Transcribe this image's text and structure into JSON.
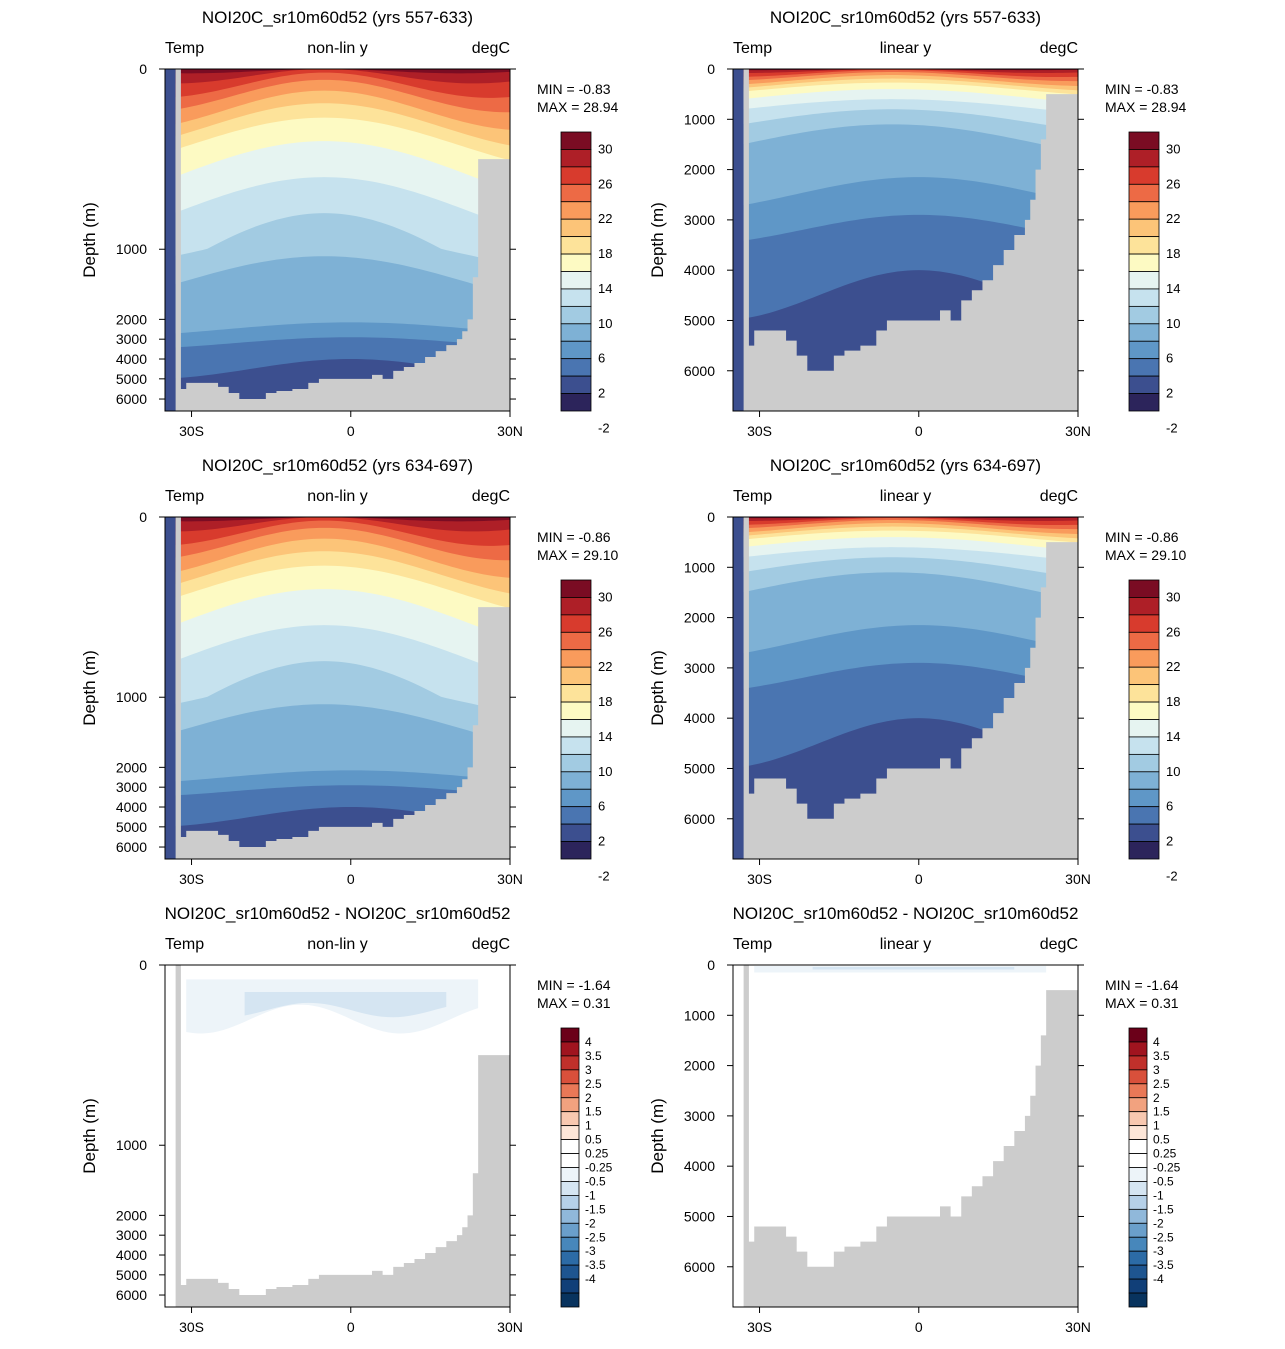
{
  "panels_grid": "3 rows x 2 columns",
  "land_color": "#cccccc",
  "absolute_palette": [
    "#2c245b",
    "#3c4f8f",
    "#4a75b1",
    "#5f97c7",
    "#7eb1d5",
    "#a2cbe2",
    "#c6e2ee",
    "#e6f4f1",
    "#fdfac3",
    "#fde39a",
    "#fcc478",
    "#f99b5c",
    "#ed6a45",
    "#d83b2d",
    "#ae1f27",
    "#7a0c23"
  ],
  "absolute_levels": [
    "-2",
    "2",
    "6",
    "10",
    "14",
    "18",
    "22",
    "26",
    "30"
  ],
  "difference_palette": [
    "#08335e",
    "#113f78",
    "#1e5590",
    "#2c6ba6",
    "#4787bb",
    "#6a9fcb",
    "#90b8da",
    "#b5d0e8",
    "#d5e5f2",
    "#edf4f9",
    "#ffffff",
    "#ffffff",
    "#fde6d8",
    "#f8c8b0",
    "#f2a27f",
    "#e97857",
    "#d9503b",
    "#c0302b",
    "#a0141f",
    "#6b0019"
  ],
  "difference_levels": [
    "4",
    "3.5",
    "3",
    "2.5",
    "2",
    "1.5",
    "1",
    "0.5",
    "0.25",
    "-0.25",
    "-0.5",
    "-1",
    "-1.5",
    "-2",
    "-2.5",
    "-3",
    "-3.5",
    "-4"
  ],
  "chart_data": [
    {
      "type": "heatmap",
      "title": "NOI20C_sr10m60d52 (yrs 557-633)",
      "header": {
        "left": "Temp",
        "center": "non-lin y",
        "right": "degC"
      },
      "stats": {
        "min": "MIN =  -0.83",
        "max": "MAX =  28.94"
      },
      "xlabel": "",
      "ylabel": "Depth (m)",
      "xticks": [
        "30S",
        "0",
        "30N"
      ],
      "yticks": [
        "0",
        "1000",
        "2000",
        "3000",
        "4000",
        "5000",
        "6000"
      ],
      "y_scale": "non-linear depth",
      "colorbar": "absolute",
      "z_range": [
        -0.83,
        28.94
      ]
    },
    {
      "type": "heatmap",
      "title": "NOI20C_sr10m60d52 (yrs 557-633)",
      "header": {
        "left": "Temp",
        "center": "linear y",
        "right": "degC"
      },
      "stats": {
        "min": "MIN =  -0.83",
        "max": "MAX =  28.94"
      },
      "xlabel": "",
      "ylabel": "Depth (m)",
      "xticks": [
        "30S",
        "0",
        "30N"
      ],
      "yticks": [
        "0",
        "1000",
        "2000",
        "3000",
        "4000",
        "5000",
        "6000"
      ],
      "y_scale": "linear depth",
      "colorbar": "absolute",
      "z_range": [
        -0.83,
        28.94
      ]
    },
    {
      "type": "heatmap",
      "title": "NOI20C_sr10m60d52 (yrs 634-697)",
      "header": {
        "left": "Temp",
        "center": "non-lin y",
        "right": "degC"
      },
      "stats": {
        "min": "MIN =  -0.86",
        "max": "MAX =  29.10"
      },
      "xlabel": "",
      "ylabel": "Depth (m)",
      "xticks": [
        "30S",
        "0",
        "30N"
      ],
      "yticks": [
        "0",
        "1000",
        "2000",
        "3000",
        "4000",
        "5000",
        "6000"
      ],
      "y_scale": "non-linear depth",
      "colorbar": "absolute",
      "z_range": [
        -0.86,
        29.1
      ]
    },
    {
      "type": "heatmap",
      "title": "NOI20C_sr10m60d52 (yrs 634-697)",
      "header": {
        "left": "Temp",
        "center": "linear y",
        "right": "degC"
      },
      "stats": {
        "min": "MIN =  -0.86",
        "max": "MAX =  29.10"
      },
      "xlabel": "",
      "ylabel": "Depth (m)",
      "xticks": [
        "30S",
        "0",
        "30N"
      ],
      "yticks": [
        "0",
        "1000",
        "2000",
        "3000",
        "4000",
        "5000",
        "6000"
      ],
      "y_scale": "linear depth",
      "colorbar": "absolute",
      "z_range": [
        -0.86,
        29.1
      ]
    },
    {
      "type": "heatmap",
      "title": "NOI20C_sr10m60d52 - NOI20C_sr10m60d52",
      "header": {
        "left": "Temp",
        "center": "non-lin y",
        "right": "degC"
      },
      "stats": {
        "min": "MIN =  -1.64",
        "max": "MAX =   0.31"
      },
      "xlabel": "",
      "ylabel": "Depth (m)",
      "xticks": [
        "30S",
        "0",
        "30N"
      ],
      "yticks": [
        "0",
        "1000",
        "2000",
        "3000",
        "4000",
        "5000",
        "6000"
      ],
      "y_scale": "non-linear depth",
      "colorbar": "difference",
      "z_range": [
        -1.64,
        0.31
      ]
    },
    {
      "type": "heatmap",
      "title": "NOI20C_sr10m60d52 - NOI20C_sr10m60d52",
      "header": {
        "left": "Temp",
        "center": "linear y",
        "right": "degC"
      },
      "stats": {
        "min": "MIN =  -1.64",
        "max": "MAX =   0.31"
      },
      "xlabel": "",
      "ylabel": "Depth (m)",
      "xticks": [
        "30S",
        "0",
        "30N"
      ],
      "yticks": [
        "0",
        "1000",
        "2000",
        "3000",
        "4000",
        "5000",
        "6000"
      ],
      "y_scale": "linear depth",
      "colorbar": "difference",
      "z_range": [
        -1.64,
        0.31
      ]
    }
  ]
}
